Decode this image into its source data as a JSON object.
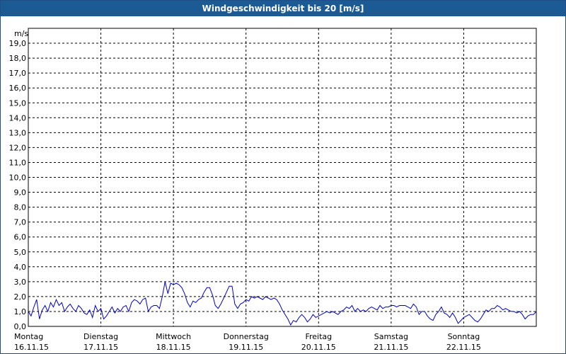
{
  "chart_data": {
    "type": "line",
    "title": "Windgeschwindigkeit bis 20 [m/s]",
    "ylabel": "m/s",
    "ylim": [
      0,
      20
    ],
    "yticks": [
      "0,0",
      "1,0",
      "2,0",
      "3,0",
      "4,0",
      "5,0",
      "6,0",
      "7,0",
      "8,0",
      "9,0",
      "10,0",
      "11,0",
      "12,0",
      "13,0",
      "14,0",
      "15,0",
      "16,0",
      "17,0",
      "18,0",
      "19,0"
    ],
    "days": [
      {
        "name": "Montag",
        "date": "16.11.15"
      },
      {
        "name": "Dienstag",
        "date": "17.11.15"
      },
      {
        "name": "Mittwoch",
        "date": "18.11.15"
      },
      {
        "name": "Donnerstag",
        "date": "19.11.15"
      },
      {
        "name": "Freitag",
        "date": "20.11.15"
      },
      {
        "name": "Samstag",
        "date": "21.11.15"
      },
      {
        "name": "Sonntag",
        "date": "22.11.15"
      }
    ],
    "grid": true,
    "line_color": "#0000cc",
    "series": [
      {
        "values": [
          1.0,
          0.7,
          1.3,
          1.8,
          0.5,
          1.1,
          1.4,
          1.0,
          1.6,
          1.3,
          1.8,
          1.4,
          1.6,
          1.0,
          1.3,
          1.5,
          1.2,
          1.0,
          1.4,
          1.2,
          0.9,
          0.8,
          1.1,
          0.6,
          1.4,
          1.0,
          1.2,
          0.5,
          0.7,
          1.0,
          1.3,
          0.9,
          1.2,
          1.0,
          1.3,
          1.4,
          1.0,
          1.6,
          1.8,
          1.7,
          1.5,
          1.8,
          1.9,
          1.0,
          1.3,
          1.4,
          1.4,
          1.2,
          2.0,
          3.0,
          2.2,
          2.9,
          2.8,
          2.9,
          2.8,
          2.6,
          2.2,
          1.6,
          1.3,
          1.7,
          1.6,
          1.8,
          1.9,
          2.3,
          2.6,
          2.6,
          2.1,
          1.4,
          1.2,
          1.5,
          1.9,
          2.3,
          2.7,
          2.7,
          1.5,
          1.2,
          1.5,
          1.6,
          1.8,
          1.7,
          2.0,
          1.9,
          2.0,
          1.9,
          1.8,
          2.0,
          1.9,
          1.8,
          1.9,
          1.8,
          1.5,
          1.1,
          0.8,
          0.5,
          0.1,
          0.4,
          0.3,
          0.6,
          0.8,
          0.6,
          0.3,
          0.5,
          0.8,
          0.6,
          0.7,
          0.8,
          0.9,
          1.0,
          0.9,
          1.0,
          0.9,
          0.8,
          1.0,
          1.1,
          1.3,
          1.2,
          1.4,
          1.0,
          1.2,
          1.0,
          1.1,
          1.0,
          1.2,
          1.3,
          1.2,
          1.1,
          1.4,
          1.2,
          1.3,
          1.3,
          1.4,
          1.4,
          1.3,
          1.4,
          1.4,
          1.4,
          1.3,
          1.2,
          1.5,
          1.3,
          0.8,
          1.0,
          1.0,
          0.7,
          0.5,
          0.4,
          0.8,
          1.0,
          1.3,
          0.9,
          0.8,
          0.6,
          0.9,
          0.6,
          0.2,
          0.4,
          0.6,
          0.7,
          0.8,
          0.6,
          0.4,
          0.3,
          0.5,
          0.8,
          1.1,
          1.0,
          1.2,
          1.2,
          1.4,
          1.3,
          1.1,
          1.2,
          1.1,
          1.0,
          1.0,
          0.9,
          1.0,
          0.8,
          0.5,
          0.7,
          0.8,
          0.8,
          1.0
        ]
      }
    ]
  }
}
